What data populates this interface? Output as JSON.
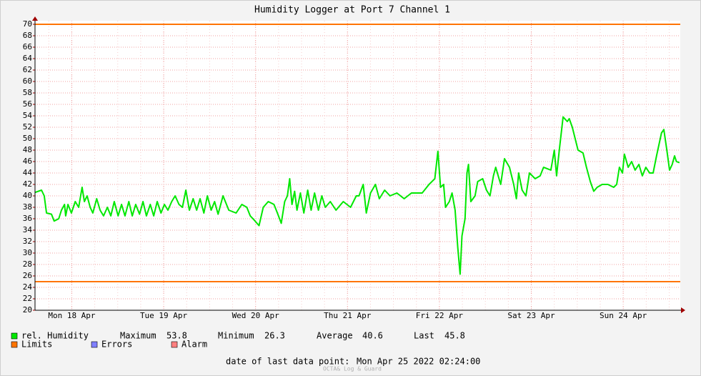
{
  "chart_data": {
    "type": "line",
    "title": "Humidity Logger at Port 7 Channel 1",
    "xlim": [
      2.4,
      170.9
    ],
    "xticks": [
      {
        "value": 12,
        "label": "Mon 18 Apr"
      },
      {
        "value": 36,
        "label": "Tue 19 Apr"
      },
      {
        "value": 60,
        "label": "Wed 20 Apr"
      },
      {
        "value": 84,
        "label": "Thu 21 Apr"
      },
      {
        "value": 108,
        "label": "Fri 22 Apr"
      },
      {
        "value": 132,
        "label": "Sat 23 Apr"
      },
      {
        "value": 156,
        "label": "Sun 24 Apr"
      }
    ],
    "ylim": [
      20,
      70
    ],
    "yticks": [
      20,
      22,
      24,
      26,
      28,
      30,
      32,
      34,
      36,
      38,
      40,
      42,
      44,
      46,
      48,
      50,
      52,
      54,
      56,
      58,
      60,
      62,
      64,
      66,
      68,
      70
    ],
    "grid": true,
    "x": [
      2.4,
      4.1,
      4.8,
      5.4,
      6.7,
      7.4,
      8.6,
      9.3,
      10.1,
      10.4,
      11.0,
      11.9,
      12.9,
      13.8,
      14.7,
      15.3,
      16.0,
      16.8,
      17.5,
      18.5,
      19.4,
      20.3,
      21.3,
      22.2,
      23.1,
      24.1,
      25.0,
      25.9,
      26.9,
      27.8,
      28.7,
      29.7,
      30.6,
      31.5,
      32.5,
      33.4,
      34.3,
      35.3,
      36.2,
      37.1,
      38.1,
      39.0,
      40.0,
      40.9,
      41.8,
      42.7,
      43.7,
      44.6,
      45.5,
      46.5,
      47.4,
      48.4,
      49.3,
      50.2,
      51.5,
      53.0,
      54.9,
      56.4,
      57.7,
      58.6,
      59.6,
      60.9,
      62.0,
      63.3,
      64.8,
      65.7,
      66.7,
      67.6,
      68.3,
      68.9,
      69.5,
      70.2,
      70.8,
      71.7,
      72.6,
      73.6,
      74.5,
      75.4,
      76.4,
      77.3,
      78.2,
      79.5,
      81.0,
      82.9,
      84.8,
      86.3,
      87.0,
      88.1,
      88.9,
      90.0,
      91.3,
      92.3,
      93.7,
      95.1,
      96.9,
      98.8,
      100.7,
      103.5,
      105.3,
      106.8,
      107.6,
      108.3,
      109.1,
      109.6,
      110.6,
      111.3,
      112.1,
      112.8,
      113.4,
      113.9,
      114.7,
      115.2,
      115.6,
      116.2,
      117.3,
      118.0,
      119.3,
      120.3,
      121.2,
      122.1,
      122.7,
      124.0,
      125.0,
      126.3,
      127.4,
      128.1,
      128.7,
      129.6,
      130.6,
      131.5,
      133.0,
      134.3,
      135.2,
      137.1,
      138.0,
      138.6,
      139.3,
      140.3,
      141.4,
      141.9,
      142.7,
      144.2,
      145.5,
      146.4,
      147.4,
      148.3,
      149.2,
      150.5,
      152.0,
      153.5,
      154.3,
      155.0,
      155.8,
      156.3,
      157.3,
      158.2,
      159.1,
      160.1,
      161.0,
      161.9,
      162.9,
      163.8,
      164.7,
      166.0,
      166.6,
      167.4,
      168.1,
      168.8,
      169.4,
      169.9,
      170.7
    ],
    "series": [
      {
        "name": "rel. Humidity",
        "color": "#00e800",
        "values": [
          40.6,
          41,
          40,
          37,
          36.8,
          35.6,
          36,
          37.5,
          38.5,
          36.5,
          38.5,
          37,
          39,
          38,
          41.5,
          39,
          40,
          38,
          37,
          39.5,
          37.5,
          36.5,
          38,
          36.5,
          39,
          36.5,
          38.5,
          36.5,
          39,
          36.5,
          38.5,
          36.8,
          39,
          36.5,
          38.5,
          36.5,
          39,
          37,
          38.5,
          37.5,
          39,
          40,
          38.5,
          38,
          41,
          37.5,
          39.5,
          37.5,
          39.5,
          37,
          40,
          37.5,
          39,
          36.8,
          40,
          37.5,
          37,
          38.5,
          38,
          36.5,
          35.8,
          34.8,
          38,
          39,
          38.5,
          37,
          35.2,
          39,
          40,
          43,
          38.5,
          40.8,
          37.5,
          40.5,
          37,
          41,
          37.5,
          40.5,
          37.5,
          40,
          38,
          39,
          37.5,
          39,
          38,
          40,
          40,
          42,
          37,
          40.5,
          42,
          39.5,
          41,
          40,
          40.5,
          39.5,
          40.5,
          40.5,
          42,
          43,
          47.8,
          41.5,
          42,
          38,
          39,
          40.5,
          37.5,
          31,
          26.3,
          33,
          36,
          44,
          45.5,
          39,
          40,
          42.5,
          43,
          41,
          40,
          43.5,
          45,
          42,
          46.5,
          45,
          42,
          39.5,
          44,
          41,
          40,
          44,
          43,
          43.5,
          45,
          44.5,
          48,
          43.5,
          48,
          53.8,
          53,
          53.5,
          52,
          48,
          47.5,
          45,
          42.5,
          40.8,
          41.5,
          42,
          42,
          41.5,
          42,
          45,
          44,
          47.3,
          45,
          46,
          44.5,
          45.5,
          43.5,
          45,
          44,
          44,
          47,
          51,
          51.6,
          48,
          44.5,
          45.5,
          47,
          46,
          45.8
        ]
      }
    ],
    "limits": {
      "name": "Limits",
      "color": "#ff7400",
      "values": [
        25,
        70
      ]
    },
    "legend_extra": [
      {
        "name": "Errors",
        "color": "#7f7fff"
      },
      {
        "name": "Alarm",
        "color": "#ff7f7f"
      }
    ],
    "stats": [
      {
        "label": "Maximum",
        "value": 53.8
      },
      {
        "label": "Minimum",
        "value": 26.3
      },
      {
        "label": "Average",
        "value": 40.6
      },
      {
        "label": "Last",
        "value": 45.8
      }
    ],
    "last_data_label": "date of last data point:",
    "last_data_time": "Mon Apr 25 2022 02:24:00",
    "watermark": "OCTA& Log & Guard"
  }
}
